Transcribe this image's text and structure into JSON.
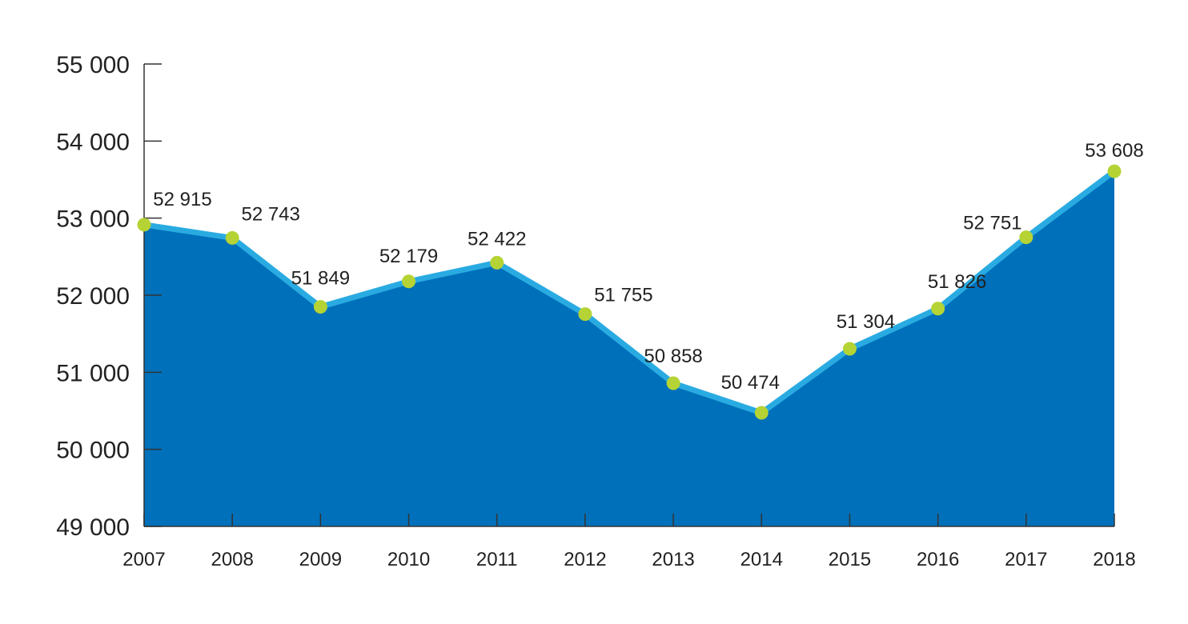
{
  "chart_data": {
    "type": "area",
    "title": "",
    "xlabel": "",
    "ylabel": "",
    "categories": [
      "2007",
      "2008",
      "2009",
      "2010",
      "2011",
      "2012",
      "2013",
      "2014",
      "2015",
      "2016",
      "2017",
      "2018"
    ],
    "series": [
      {
        "values": [
          52915,
          52743,
          51849,
          52179,
          52422,
          51755,
          50858,
          50474,
          51304,
          51826,
          52751,
          53608
        ],
        "labels": [
          "52 915",
          "52 743",
          "51 849",
          "52 179",
          "52 422",
          "51 755",
          "50 858",
          "50 474",
          "51 304",
          "51 826",
          "52 751",
          "53 608"
        ]
      }
    ],
    "ylim": [
      49000,
      55000
    ],
    "yticks": [
      49000,
      50000,
      51000,
      52000,
      53000,
      54000,
      55000
    ],
    "ytick_labels": [
      "49 000",
      "50 000",
      "51 000",
      "52 000",
      "53 000",
      "54 000",
      "55 000"
    ],
    "grid": false,
    "legend": "none",
    "colors": {
      "area_fill": "#0070BA",
      "line": "#29ABE2",
      "marker": "#B5D334",
      "axis": "#333333",
      "text": "#222222"
    }
  }
}
